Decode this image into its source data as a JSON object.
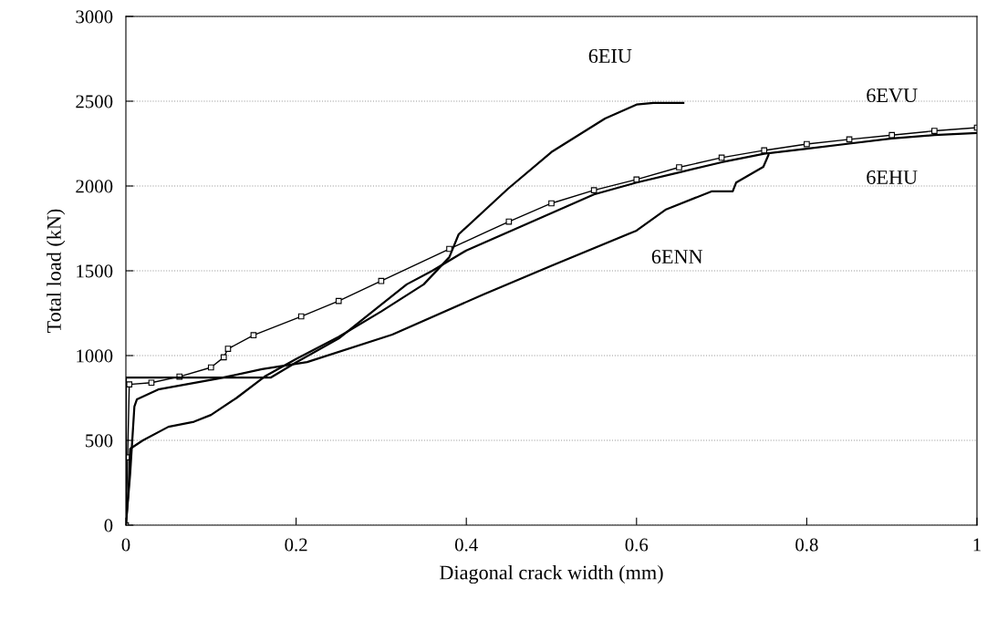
{
  "chart_data": {
    "type": "line",
    "xlabel": "Diagonal crack width (mm)",
    "ylabel": "Total load (kN)",
    "xlim": [
      0,
      1
    ],
    "xticks": [
      0,
      0.2,
      0.4,
      0.6,
      0.8,
      1
    ],
    "ylim": [
      0,
      3000
    ],
    "yticks": [
      0,
      500,
      1000,
      1500,
      2000,
      2500,
      3000
    ],
    "grid": "y",
    "line_style": "solid",
    "series": [
      {
        "name": "6EVU",
        "color": "#000000",
        "marker": "square",
        "x": [
          0,
          0.002,
          0.004,
          0.03,
          0.063,
          0.1,
          0.115,
          0.12,
          0.15,
          0.206,
          0.25,
          0.3,
          0.38,
          0.45,
          0.5,
          0.55,
          0.6,
          0.65,
          0.7,
          0.75,
          0.8,
          0.85,
          0.9,
          0.95,
          1.0
        ],
        "values": [
          0,
          400,
          830,
          840,
          876,
          930,
          990,
          1040,
          1120,
          1231,
          1322,
          1440,
          1629,
          1790,
          1898,
          1975,
          2038,
          2110,
          2167,
          2210,
          2247,
          2275,
          2300,
          2325,
          2344
        ]
      },
      {
        "name": "6EHU",
        "color": "#000000",
        "marker": "none",
        "x": [
          0,
          0,
          0.17,
          0.2,
          0.25,
          0.3,
          0.33,
          0.36,
          0.4,
          0.45,
          0.5,
          0.55,
          0.6,
          0.65,
          0.7,
          0.75,
          0.8,
          0.85,
          0.9,
          0.95,
          1.0
        ],
        "values": [
          0,
          870,
          870,
          960,
          1100,
          1300,
          1420,
          1500,
          1620,
          1730,
          1840,
          1950,
          2020,
          2080,
          2140,
          2190,
          2220,
          2250,
          2280,
          2300,
          2312
        ]
      },
      {
        "name": "6EIU",
        "color": "#000000",
        "marker": "none",
        "x": [
          0,
          0.003,
          0.005,
          0.02,
          0.05,
          0.08,
          0.1,
          0.13,
          0.163,
          0.2,
          0.25,
          0.3,
          0.35,
          0.38,
          0.391,
          0.449,
          0.5,
          0.563,
          0.6,
          0.62,
          0.655
        ],
        "values": [
          0,
          200,
          450,
          500,
          580,
          610,
          650,
          750,
          876,
          980,
          1110,
          1260,
          1420,
          1580,
          1715,
          1984,
          2200,
          2398,
          2480,
          2490,
          2490
        ]
      },
      {
        "name": "6ENN",
        "color": "#000000",
        "marker": "none",
        "x": [
          0,
          0.005,
          0.01,
          0.013,
          0.038,
          0.109,
          0.16,
          0.213,
          0.313,
          0.42,
          0.5,
          0.6,
          0.634,
          0.688,
          0.713,
          0.717,
          0.749,
          0.755
        ],
        "values": [
          0,
          300,
          700,
          742,
          800,
          865,
          920,
          962,
          1124,
          1360,
          1530,
          1737,
          1860,
          1968,
          1968,
          2020,
          2113,
          2183
        ]
      }
    ]
  }
}
